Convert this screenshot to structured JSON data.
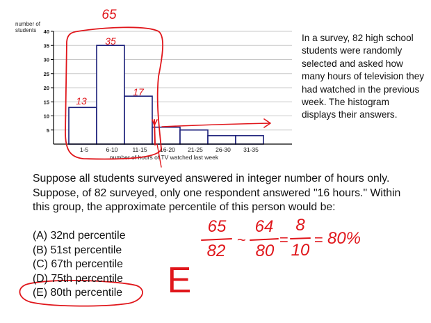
{
  "chart_data": {
    "type": "bar",
    "ylabel": "number of students",
    "xlabel": "number of hours of TV watched last week",
    "categories": [
      "1-5",
      "6-10",
      "11-15",
      "16-20",
      "21-25",
      "26-30",
      "31-35"
    ],
    "values": [
      13,
      35,
      17,
      6,
      5,
      3,
      3
    ],
    "yticks": [
      5,
      10,
      15,
      20,
      25,
      30,
      35,
      40
    ],
    "ylim": [
      0,
      40
    ],
    "grid": true
  },
  "side_text": "In a survey, 82 high school students were randomly selected and asked how many hours of television they had watched in the previous week.  The histogram displays their answers.",
  "question": "Suppose all students surveyed answered in integer number of hours only.  Suppose, of 82 surveyed, only one respondent answered \"16 hours.\"  Within this group, the approximate percentile of this person would be:",
  "choices": [
    {
      "letter": "(A)",
      "text": "32nd percentile"
    },
    {
      "letter": "(B)",
      "text": "51st percentile"
    },
    {
      "letter": "(C)",
      "text": "67th percentile"
    },
    {
      "letter": "(D)",
      "text": "75th percentile"
    },
    {
      "letter": "(E)",
      "text": "80th percentile"
    }
  ],
  "annotations": {
    "sum_label": "65",
    "bar_labels": [
      "13",
      "35",
      "17"
    ],
    "fraction_1": {
      "num": "65",
      "den": "82"
    },
    "approx": "~",
    "fraction_2": {
      "num": "64",
      "den": "80"
    },
    "eq_1": "=",
    "fraction_3": {
      "num": "8",
      "den": "10"
    },
    "eq_2": "=",
    "result": "80%",
    "answer_letter": "E",
    "ink_color": "#e0161b"
  }
}
